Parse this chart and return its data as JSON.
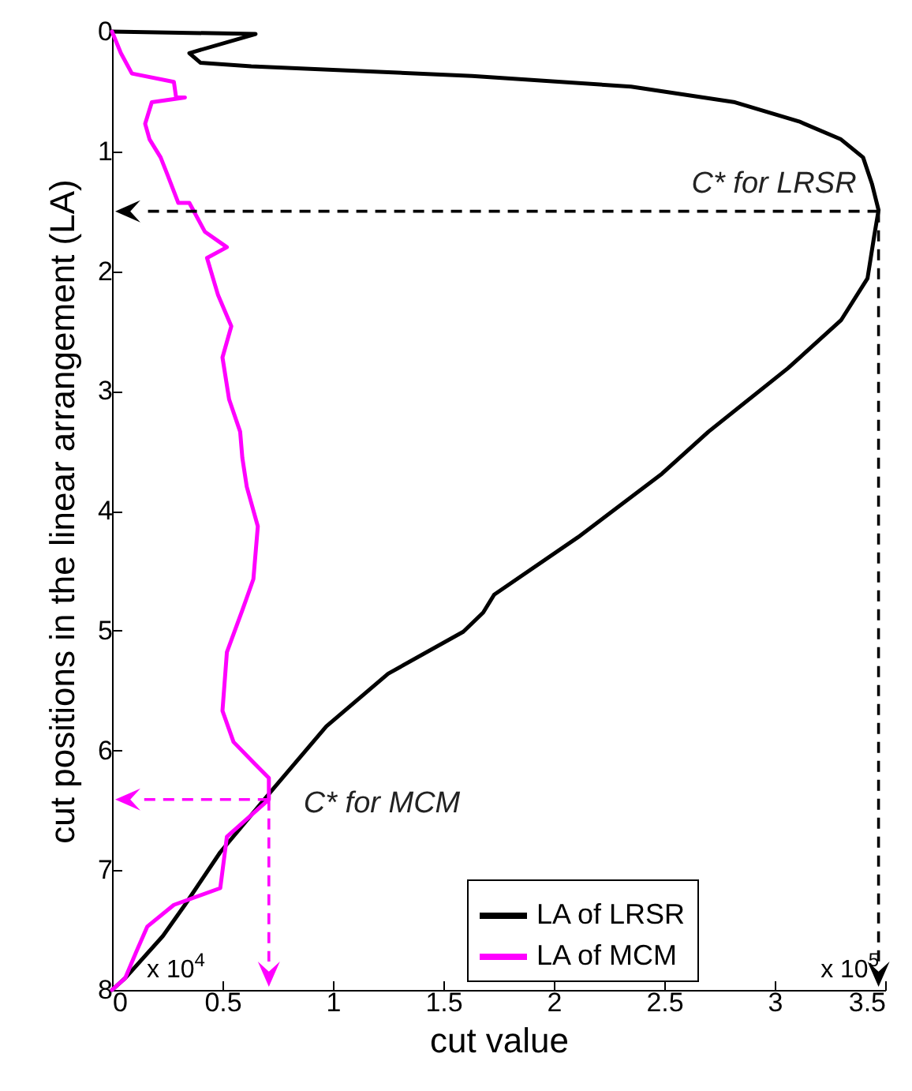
{
  "chart_data": {
    "type": "line",
    "xlabel": "cut value",
    "ylabel": "cut positions in the linear arrangement (LA)",
    "xlim": [
      0,
      3.5
    ],
    "xticks": [
      0,
      0.5,
      1,
      1.5,
      2,
      2.5,
      3,
      3.5
    ],
    "ylim": [
      8,
      0
    ],
    "yticks": [
      0,
      1,
      2,
      3,
      4,
      5,
      6,
      7,
      8
    ],
    "grid": false,
    "legend": "bottom right",
    "marker": "none",
    "line_style": "solid",
    "series": [
      {
        "name": "LA of LRSR",
        "color": "#000000",
        "x": [
          0,
          0.65,
          0.35,
          0.4,
          0.63,
          1.0,
          1.63,
          2.35,
          2.82,
          3.11,
          3.3,
          3.4,
          3.44,
          3.47,
          3.45,
          3.42,
          3.3,
          3.06,
          2.7,
          2.49,
          2.11,
          1.73,
          1.68,
          1.59,
          1.25,
          0.97,
          0.73,
          0.49,
          0.33,
          0.23,
          0.06,
          0
        ],
        "values": [
          0,
          0.02,
          0.18,
          0.26,
          0.29,
          0.32,
          0.37,
          0.46,
          0.59,
          0.75,
          0.9,
          1.05,
          1.27,
          1.49,
          1.71,
          2.06,
          2.41,
          2.81,
          3.34,
          3.69,
          4.22,
          4.7,
          4.85,
          5.01,
          5.36,
          5.8,
          6.32,
          6.85,
          7.29,
          7.55,
          7.9,
          8
        ]
      },
      {
        "name": "LA of MCM",
        "color": "#ff00ff",
        "x": [
          0,
          0.04,
          0.09,
          0.28,
          0.29,
          0.33,
          0.18,
          0.15,
          0.17,
          0.22,
          0.25,
          0.3,
          0.35,
          0.42,
          0.52,
          0.43,
          0.48,
          0.54,
          0.5,
          0.53,
          0.58,
          0.59,
          0.61,
          0.66,
          0.64,
          0.59,
          0.52,
          0.5,
          0.55,
          0.64,
          0.71,
          0.71,
          0.52,
          0.49,
          0.28,
          0.16,
          0.11,
          0.06,
          0
        ],
        "values": [
          0,
          0.18,
          0.35,
          0.42,
          0.55,
          0.55,
          0.59,
          0.77,
          0.9,
          1.05,
          1.19,
          1.43,
          1.43,
          1.67,
          1.8,
          1.89,
          2.2,
          2.46,
          2.72,
          3.07,
          3.34,
          3.56,
          3.8,
          4.13,
          4.57,
          4.83,
          5.18,
          5.67,
          5.93,
          6.1,
          6.23,
          6.41,
          6.72,
          7.15,
          7.29,
          7.47,
          7.68,
          7.9,
          8
        ]
      }
    ],
    "annotations": [
      {
        "text": "C* for LRSR",
        "x": 3.47,
        "y": 1.5
      },
      {
        "text": "C* for MCM",
        "x": 0.71,
        "y": 6.41
      },
      "x 10$^{4}$",
      "x 10$^{5}$"
    ]
  }
}
